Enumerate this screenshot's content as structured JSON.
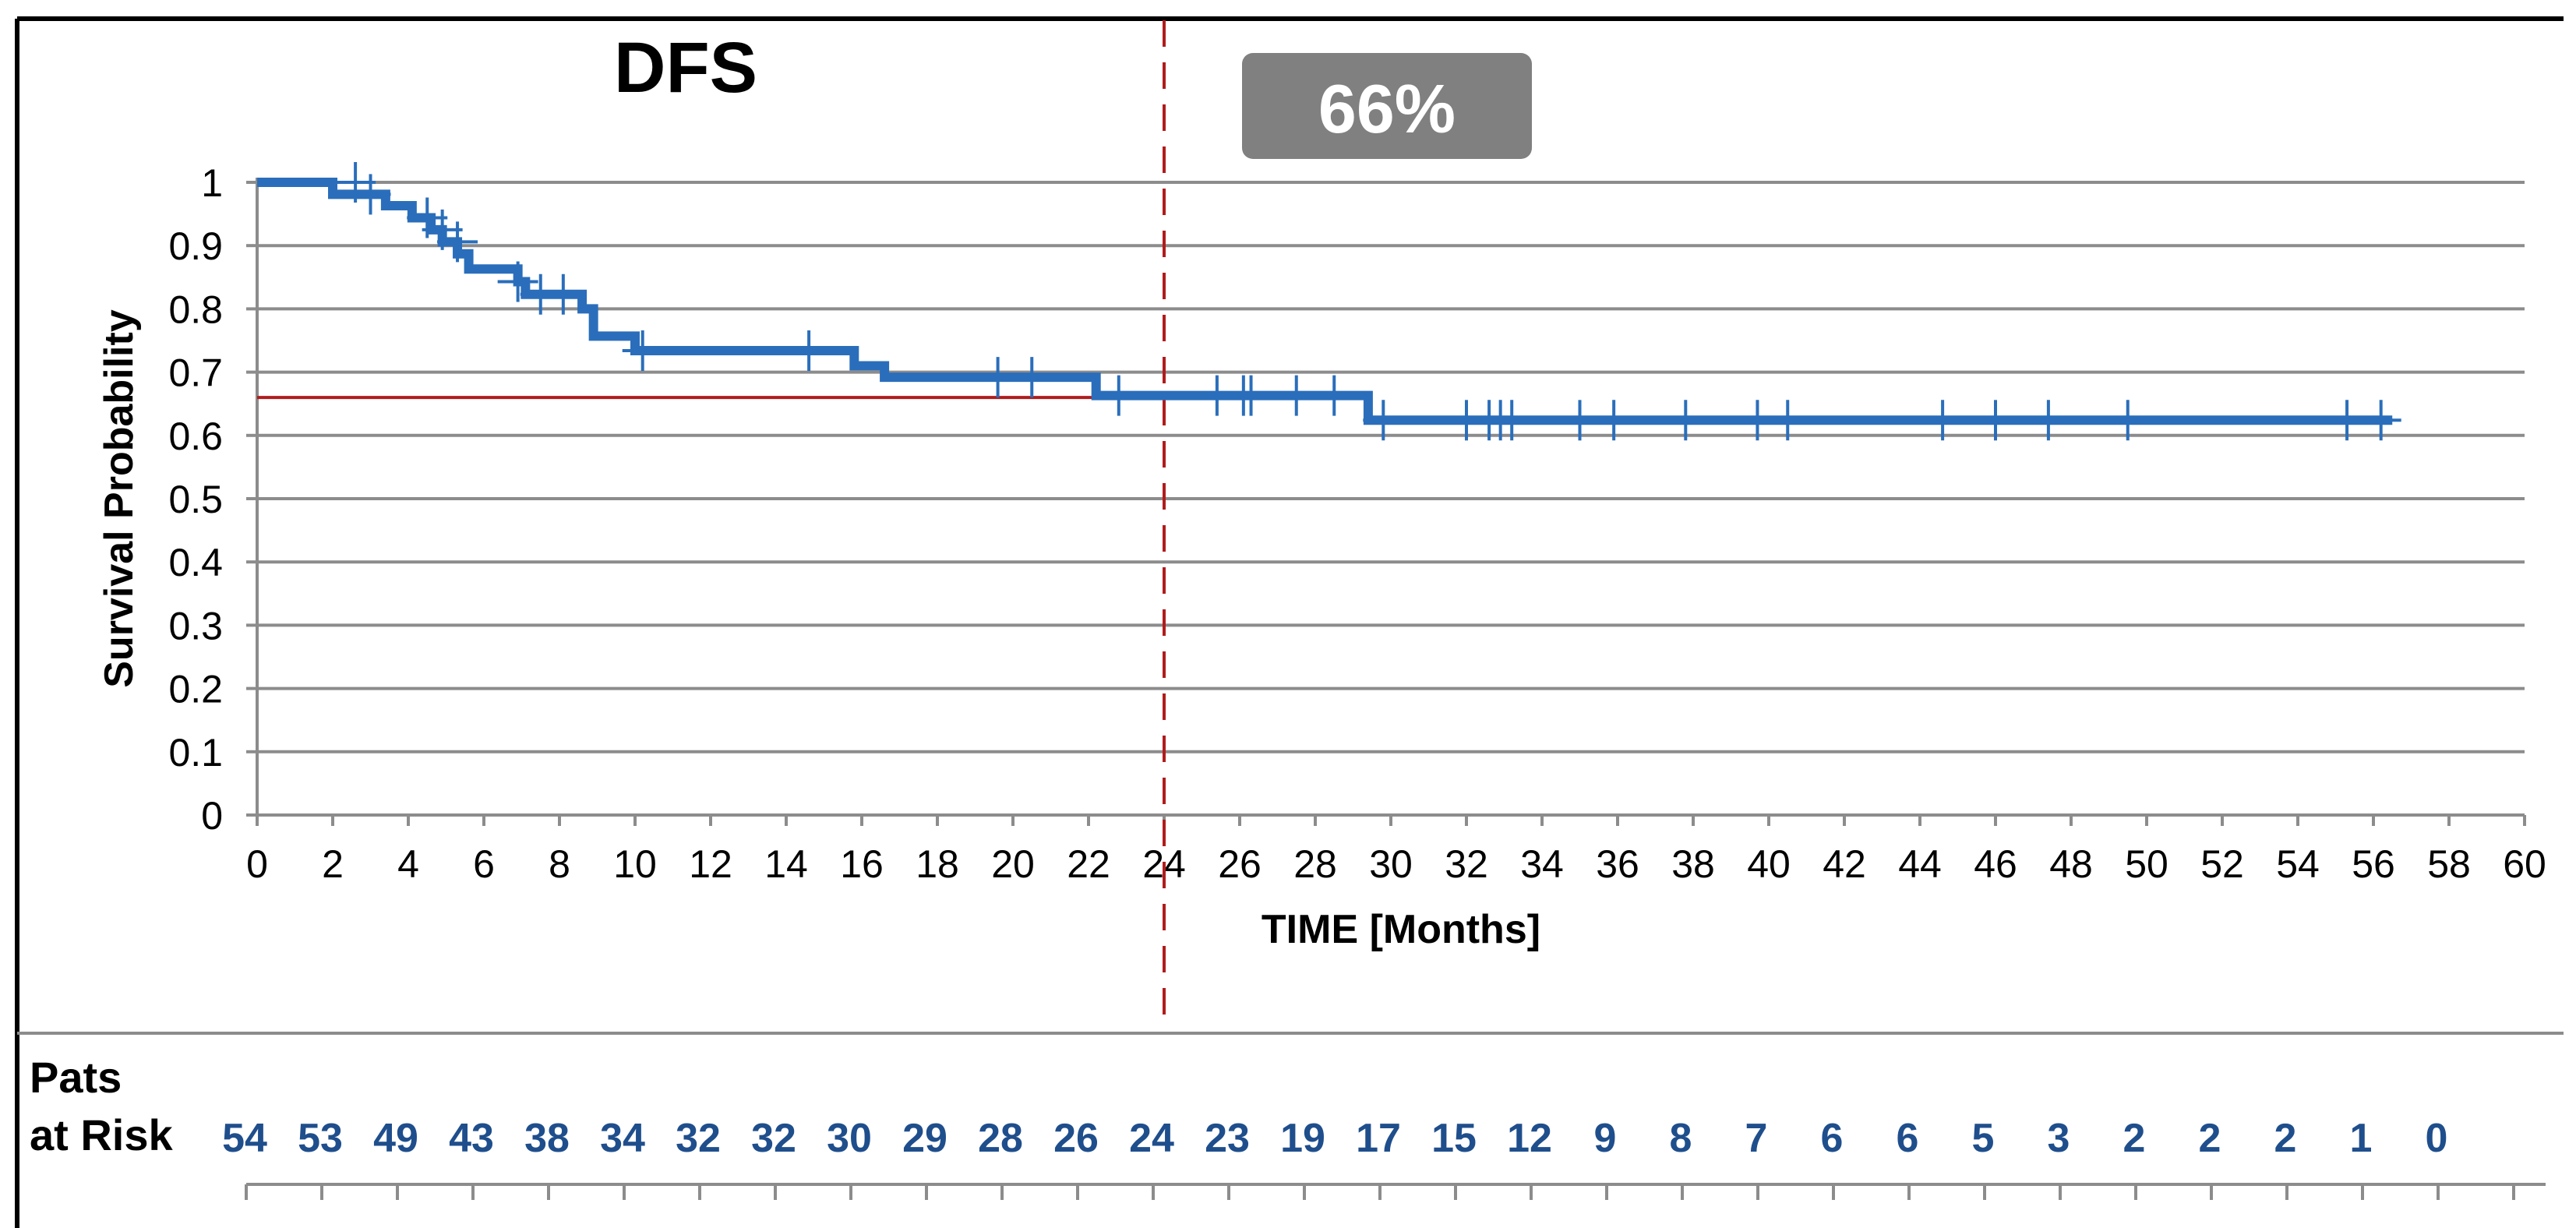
{
  "chart_data": {
    "type": "line",
    "title": "DFS",
    "annotation": "66%",
    "xlabel": "TIME [Months]",
    "ylabel": "Survival Probability",
    "xlim": [
      0,
      60
    ],
    "ylim": [
      0,
      1
    ],
    "x_ticks": [
      "0",
      "2",
      "4",
      "6",
      "8",
      "10",
      "12",
      "14",
      "16",
      "18",
      "20",
      "22",
      "24",
      "26",
      "28",
      "30",
      "32",
      "34",
      "36",
      "38",
      "40",
      "42",
      "44",
      "46",
      "48",
      "50",
      "52",
      "54",
      "56",
      "58",
      "60"
    ],
    "y_ticks": [
      "0",
      "0.1",
      "0.2",
      "0.3",
      "0.4",
      "0.5",
      "0.6",
      "0.7",
      "0.8",
      "0.9",
      "1"
    ],
    "grid": "horizontal",
    "reference_lines": {
      "vertical_x": 24,
      "horizontal_y": 0.66
    },
    "series": [
      {
        "color": "#2a6ebb",
        "steps": [
          [
            0,
            1.0
          ],
          [
            2.0,
            0.981
          ],
          [
            3.4,
            0.963
          ],
          [
            4.1,
            0.944
          ],
          [
            4.6,
            0.925
          ],
          [
            4.9,
            0.906
          ],
          [
            5.3,
            0.887
          ],
          [
            5.6,
            0.863
          ],
          [
            6.9,
            0.843
          ],
          [
            7.1,
            0.823
          ],
          [
            8.6,
            0.8
          ],
          [
            8.9,
            0.757
          ],
          [
            10.0,
            0.734
          ],
          [
            15.8,
            0.71
          ],
          [
            16.6,
            0.692
          ],
          [
            22.2,
            0.663
          ],
          [
            29.4,
            0.624
          ],
          [
            56.5,
            0.624
          ]
        ],
        "censored": [
          [
            2.6,
            1.0
          ],
          [
            3.0,
            0.981
          ],
          [
            4.5,
            0.944
          ],
          [
            4.9,
            0.925
          ],
          [
            5.3,
            0.906
          ],
          [
            6.9,
            0.843
          ],
          [
            7.5,
            0.823
          ],
          [
            8.1,
            0.823
          ],
          [
            10.2,
            0.734
          ],
          [
            14.6,
            0.734
          ],
          [
            19.6,
            0.692
          ],
          [
            20.5,
            0.692
          ],
          [
            22.8,
            0.663
          ],
          [
            25.4,
            0.663
          ],
          [
            26.1,
            0.663
          ],
          [
            26.3,
            0.663
          ],
          [
            27.5,
            0.663
          ],
          [
            28.5,
            0.663
          ],
          [
            29.8,
            0.624
          ],
          [
            32.0,
            0.624
          ],
          [
            32.6,
            0.624
          ],
          [
            32.9,
            0.624
          ],
          [
            33.2,
            0.624
          ],
          [
            35.0,
            0.624
          ],
          [
            35.9,
            0.624
          ],
          [
            37.8,
            0.624
          ],
          [
            39.7,
            0.624
          ],
          [
            40.5,
            0.624
          ],
          [
            44.6,
            0.624
          ],
          [
            46.0,
            0.624
          ],
          [
            47.4,
            0.624
          ],
          [
            49.5,
            0.624
          ],
          [
            55.3,
            0.624
          ],
          [
            56.2,
            0.624
          ]
        ]
      }
    ],
    "risk_table": {
      "label_line1": "Pats",
      "label_line2": "at Risk",
      "values": [
        "54",
        "53",
        "49",
        "43",
        "38",
        "34",
        "32",
        "32",
        "30",
        "29",
        "28",
        "26",
        "24",
        "23",
        "19",
        "17",
        "15",
        "12",
        "9",
        "8",
        "7",
        "6",
        "6",
        "5",
        "3",
        "2",
        "2",
        "2",
        "1",
        "0"
      ]
    }
  },
  "colors": {
    "series": "#2a6ebb",
    "reference": "#b01c1c",
    "risk_text": "#1f4e8c",
    "badge": "#808080",
    "grid": "#8c8c8c"
  }
}
